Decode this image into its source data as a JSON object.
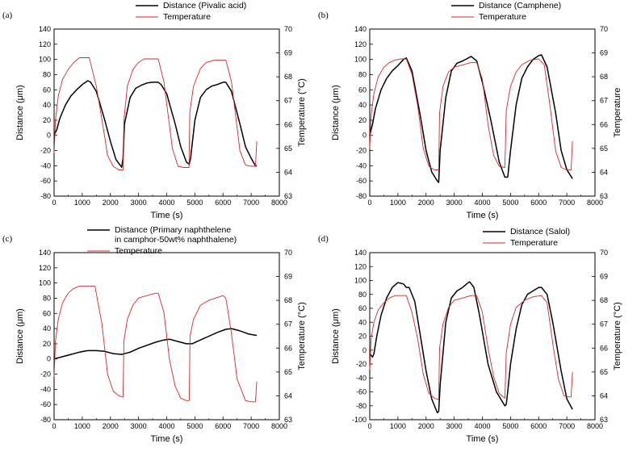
{
  "colors": {
    "distance": "#000000",
    "temperature": "#d62a2a"
  },
  "chart_data": [
    {
      "type": "line",
      "panel_label": "(a)",
      "xlabel": "Time (s)",
      "ylabel": "Distance (μm)",
      "y2label": "Temperature (°C)",
      "xlim": [
        0,
        8000
      ],
      "xticks": [
        0,
        1000,
        2000,
        3000,
        4000,
        5000,
        6000,
        7000,
        8000
      ],
      "ylim": [
        -80,
        140
      ],
      "yticks": [
        -80,
        -60,
        -40,
        -20,
        0,
        20,
        40,
        60,
        80,
        100,
        120,
        140
      ],
      "y2lim": [
        63,
        70
      ],
      "y2ticks": [
        63,
        64,
        65,
        66,
        67,
        68,
        69,
        70
      ],
      "legend": [
        "Distance (Pivalic acid)",
        "Temperature"
      ],
      "legend_position": "top-center",
      "series": [
        {
          "name": "Distance (Pivalic acid)",
          "axis": "left",
          "color": "#000000",
          "x": [
            0,
            100,
            200,
            400,
            600,
            800,
            1000,
            1200,
            1300,
            1500,
            1800,
            2000,
            2200,
            2400,
            2450,
            2500,
            2700,
            2900,
            3100,
            3300,
            3500,
            3700,
            3800,
            4000,
            4300,
            4500,
            4700,
            4800,
            4850,
            5000,
            5200,
            5400,
            5600,
            5800,
            6000,
            6100,
            6300,
            6600,
            6800,
            7000,
            7150,
            7200
          ],
          "y": [
            0,
            8,
            22,
            40,
            52,
            60,
            67,
            72,
            70,
            58,
            20,
            -8,
            -32,
            -42,
            -30,
            15,
            50,
            62,
            66,
            69,
            70,
            70,
            67,
            55,
            15,
            -15,
            -35,
            -38,
            -30,
            20,
            50,
            60,
            65,
            67,
            70,
            70,
            58,
            15,
            -15,
            -30,
            -40,
            -40
          ]
        },
        {
          "name": "Temperature",
          "axis": "right",
          "color": "#d62a2a",
          "x": [
            0,
            50,
            150,
            300,
            500,
            700,
            900,
            1100,
            1250,
            1500,
            1700,
            1900,
            2100,
            2300,
            2450,
            2480,
            2600,
            2800,
            3000,
            3200,
            3400,
            3700,
            3900,
            4200,
            4400,
            4600,
            4790,
            4820,
            4950,
            5200,
            5400,
            5700,
            6100,
            6300,
            6600,
            6800,
            7000,
            7150,
            7200
          ],
          "y": [
            64.8,
            66.2,
            67.2,
            67.9,
            68.3,
            68.6,
            68.8,
            68.8,
            68.8,
            67.6,
            66.2,
            64.7,
            64.25,
            64.1,
            64.1,
            66.2,
            67.6,
            68.3,
            68.6,
            68.75,
            68.75,
            68.75,
            67.8,
            65.0,
            64.25,
            64.2,
            64.2,
            66.5,
            67.6,
            68.35,
            68.6,
            68.7,
            68.7,
            67.8,
            64.9,
            64.3,
            64.25,
            64.25,
            65.3
          ]
        }
      ]
    },
    {
      "type": "line",
      "panel_label": "(b)",
      "xlabel": "Time (s)",
      "ylabel": "Distance (μm)",
      "y2label": "Temperature",
      "xlim": [
        0,
        8000
      ],
      "xticks": [
        0,
        1000,
        2000,
        3000,
        4000,
        5000,
        6000,
        7000,
        8000
      ],
      "ylim": [
        -80,
        140
      ],
      "yticks": [
        -80,
        -60,
        -40,
        -20,
        0,
        20,
        40,
        60,
        80,
        100,
        120,
        140
      ],
      "y2lim": [
        63,
        70
      ],
      "y2ticks": [
        63,
        64,
        65,
        66,
        67,
        68,
        69,
        70
      ],
      "legend": [
        "Distance (Camphene)",
        "Temperature"
      ],
      "legend_position": "top-center",
      "series": [
        {
          "name": "Distance (Camphene)",
          "axis": "left",
          "color": "#000000",
          "x": [
            0,
            100,
            200,
            400,
            600,
            800,
            1000,
            1200,
            1300,
            1500,
            1800,
            2000,
            2200,
            2400,
            2450,
            2500,
            2700,
            2900,
            3100,
            3300,
            3500,
            3600,
            3800,
            4000,
            4300,
            4600,
            4800,
            4900,
            5000,
            5200,
            5400,
            5600,
            5800,
            6000,
            6100,
            6300,
            6600,
            6800,
            7000,
            7200
          ],
          "y": [
            0,
            15,
            35,
            60,
            75,
            85,
            92,
            100,
            102,
            85,
            25,
            -20,
            -48,
            -60,
            -62,
            -20,
            50,
            85,
            95,
            98,
            102,
            104,
            98,
            70,
            20,
            -35,
            -55,
            -55,
            -20,
            40,
            75,
            90,
            100,
            105,
            106,
            90,
            30,
            -20,
            -45,
            -57
          ]
        },
        {
          "name": "Temperature",
          "axis": "right",
          "color": "#d62a2a",
          "x": [
            0,
            50,
            150,
            300,
            500,
            700,
            900,
            1100,
            1300,
            1500,
            1700,
            1900,
            2100,
            2300,
            2450,
            2480,
            2600,
            2800,
            3000,
            3300,
            3600,
            3800,
            4000,
            4200,
            4400,
            4600,
            4800,
            4850,
            5000,
            5200,
            5400,
            5700,
            6000,
            6200,
            6400,
            6600,
            6800,
            7000,
            7150,
            7200
          ],
          "y": [
            65.0,
            66.4,
            67.3,
            68.0,
            68.4,
            68.6,
            68.7,
            68.75,
            68.75,
            68.1,
            66.8,
            65.0,
            64.25,
            64.1,
            64.1,
            66.5,
            67.6,
            68.2,
            68.4,
            68.5,
            68.6,
            68.6,
            67.9,
            66.0,
            64.7,
            64.25,
            64.2,
            66.6,
            67.6,
            68.2,
            68.5,
            68.7,
            68.75,
            68.5,
            66.8,
            64.9,
            64.2,
            64.1,
            64.1,
            65.3
          ]
        }
      ]
    },
    {
      "type": "line",
      "panel_label": "(c)",
      "xlabel": "Time (s)",
      "ylabel": "Distance (μm)",
      "y2label": "Temperature (°C)",
      "xlim": [
        0,
        8000
      ],
      "xticks": [
        0,
        1000,
        2000,
        3000,
        4000,
        5000,
        6000,
        7000,
        8000
      ],
      "ylim": [
        -80,
        140
      ],
      "yticks": [
        -80,
        -60,
        -40,
        -20,
        0,
        20,
        40,
        60,
        80,
        100,
        120,
        140
      ],
      "y2lim": [
        63,
        70
      ],
      "y2ticks": [
        63,
        64,
        65,
        66,
        67,
        68,
        69,
        70
      ],
      "legend": [
        "Distance (Primary naphthelene\nin camphor-50wt% naphthalene)",
        "Temperature"
      ],
      "legend_position": "top-center",
      "series": [
        {
          "name": "Distance (Primary naphthelene in camphor-50wt% naphthalene)",
          "axis": "left",
          "color": "#000000",
          "x": [
            0,
            300,
            600,
            900,
            1200,
            1500,
            1800,
            2100,
            2400,
            2700,
            3000,
            3300,
            3600,
            3900,
            4100,
            4400,
            4700,
            4900,
            5200,
            5500,
            5800,
            6100,
            6300,
            6600,
            6900,
            7200
          ],
          "y": [
            0,
            3,
            6,
            9,
            11,
            11,
            10,
            7,
            6,
            9,
            14,
            18,
            22,
            25,
            26,
            23,
            20,
            20,
            25,
            30,
            35,
            39,
            40,
            37,
            33,
            31
          ]
        },
        {
          "name": "Temperature",
          "axis": "right",
          "color": "#d62a2a",
          "x": [
            0,
            50,
            150,
            300,
            500,
            700,
            900,
            1100,
            1300,
            1450,
            1700,
            1900,
            2100,
            2300,
            2450,
            2480,
            2600,
            2800,
            3000,
            3300,
            3600,
            3700,
            3900,
            4100,
            4300,
            4500,
            4700,
            4800,
            4830,
            4950,
            5200,
            5500,
            6000,
            6100,
            6300,
            6500,
            6800,
            7000,
            7150,
            7200
          ],
          "y": [
            64.8,
            66.3,
            67.2,
            67.9,
            68.3,
            68.5,
            68.6,
            68.6,
            68.6,
            68.6,
            67.0,
            64.9,
            64.2,
            64.0,
            63.95,
            66.3,
            67.2,
            67.8,
            68.1,
            68.2,
            68.3,
            68.3,
            67.5,
            65.5,
            64.4,
            63.9,
            63.8,
            63.8,
            66.5,
            67.2,
            67.8,
            68.0,
            68.2,
            68.1,
            66.6,
            64.7,
            63.8,
            63.75,
            63.75,
            64.6
          ]
        }
      ]
    },
    {
      "type": "line",
      "panel_label": "(d)",
      "xlabel": "Time (s)",
      "ylabel": "Distance (μm)",
      "y2label": "Temperature (°C)",
      "xlim": [
        0,
        8000
      ],
      "xticks": [
        0,
        1000,
        2000,
        3000,
        4000,
        5000,
        6000,
        7000,
        8000
      ],
      "ylim": [
        -100,
        140
      ],
      "yticks": [
        -100,
        -80,
        -60,
        -40,
        -20,
        0,
        20,
        40,
        60,
        80,
        100,
        120,
        140
      ],
      "y2lim": [
        63,
        70
      ],
      "y2ticks": [
        63,
        64,
        65,
        66,
        67,
        68,
        69,
        70
      ],
      "legend": [
        "Distance (Salol)",
        "Temperature"
      ],
      "legend_position": "top-center",
      "series": [
        {
          "name": "Distance (Salol)",
          "axis": "left",
          "color": "#000000",
          "x": [
            0,
            100,
            150,
            250,
            400,
            600,
            800,
            1000,
            1200,
            1300,
            1400,
            1600,
            1800,
            2000,
            2200,
            2400,
            2450,
            2500,
            2700,
            2900,
            3100,
            3300,
            3500,
            3550,
            3700,
            3900,
            4200,
            4500,
            4800,
            4850,
            4900,
            5000,
            5200,
            5400,
            5600,
            5800,
            6000,
            6100,
            6300,
            6500,
            6800,
            7000,
            7200
          ],
          "y": [
            -5,
            -10,
            -5,
            20,
            50,
            75,
            90,
            97,
            95,
            90,
            90,
            70,
            20,
            -30,
            -70,
            -90,
            -88,
            -50,
            40,
            75,
            85,
            90,
            97,
            98,
            90,
            50,
            -20,
            -60,
            -80,
            -78,
            -60,
            -20,
            30,
            65,
            80,
            85,
            90,
            90,
            80,
            40,
            -30,
            -70,
            -85
          ]
        },
        {
          "name": "Temperature",
          "axis": "right",
          "color": "#d62a2a",
          "x": [
            0,
            50,
            150,
            300,
            500,
            700,
            900,
            1100,
            1300,
            1500,
            1700,
            1900,
            2100,
            2300,
            2450,
            2480,
            2600,
            2800,
            3000,
            3300,
            3600,
            3800,
            4000,
            4200,
            4400,
            4600,
            4800,
            4850,
            5000,
            5200,
            5500,
            5800,
            6100,
            6300,
            6500,
            6700,
            6900,
            7100,
            7150,
            7200
          ],
          "y": [
            65.1,
            66.4,
            67.1,
            67.6,
            67.9,
            68.1,
            68.2,
            68.2,
            68.2,
            67.5,
            66.4,
            64.9,
            64.1,
            63.9,
            63.85,
            66.0,
            67.0,
            67.7,
            68.0,
            68.1,
            68.2,
            68.2,
            67.5,
            66.0,
            64.8,
            64.1,
            63.9,
            65.8,
            67.0,
            67.7,
            68.0,
            68.15,
            68.2,
            67.9,
            66.2,
            64.7,
            64.0,
            63.95,
            63.95,
            65.0
          ]
        }
      ]
    }
  ]
}
